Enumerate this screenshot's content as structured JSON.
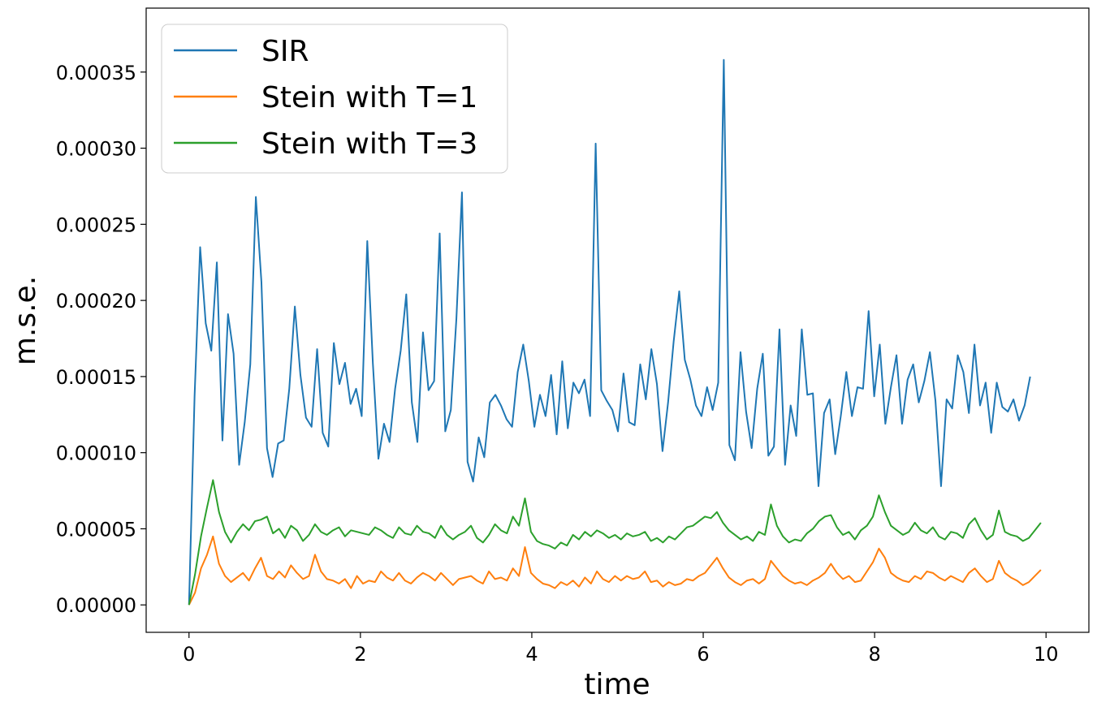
{
  "chart_data": {
    "type": "line",
    "title": "",
    "xlabel": "time",
    "ylabel": "m.s.e.",
    "xlim": [
      -0.5,
      10.5
    ],
    "ylim": [
      -1.8e-05,
      0.000392
    ],
    "x_ticks": [
      0,
      2,
      4,
      6,
      8,
      10
    ],
    "x_tick_labels": [
      "0",
      "2",
      "4",
      "6",
      "8",
      "10"
    ],
    "y_ticks": [
      0.0,
      5e-05,
      0.0001,
      0.00015,
      0.0002,
      0.00025,
      0.0003,
      0.00035
    ],
    "y_tick_labels": [
      "0.00000",
      "0.00005",
      "0.00010",
      "0.00015",
      "0.00020",
      "0.00025",
      "0.00030",
      "0.00035"
    ],
    "legend_position": "top-left",
    "x_start": 0,
    "x_step": 0.2,
    "series": [
      {
        "name": "SIR",
        "color": "#1f77b4",
        "values": [
          0.0,
          0.000137,
          0.000235,
          0.000185,
          0.000167,
          0.000225,
          0.000108,
          0.000191,
          0.000165,
          9.2e-05,
          0.00012,
          0.000158,
          0.000268,
          0.000212,
          0.000103,
          8.4e-05,
          0.000106,
          0.000108,
          0.000142,
          0.000196,
          0.000151,
          0.000123,
          0.000117,
          0.000168,
          0.000113,
          0.000104,
          0.000172,
          0.000145,
          0.000159,
          0.000132,
          0.000142,
          0.000124,
          0.000239,
          0.000159,
          9.6e-05,
          0.000119,
          0.000107,
          0.000142,
          0.000167,
          0.000204,
          0.000133,
          0.000107,
          0.000179,
          0.000141,
          0.000147,
          0.000244,
          0.000114,
          0.000128,
          0.000188,
          0.000271,
          9.4e-05,
          8.1e-05,
          0.00011,
          9.7e-05,
          0.000133,
          0.000138,
          0.000131,
          0.000122,
          0.000117,
          0.000153,
          0.000171,
          0.000147,
          0.000117,
          0.000138,
          0.000124,
          0.000151,
          0.000112,
          0.00016,
          0.000116,
          0.000146,
          0.000139,
          0.000148,
          0.000124,
          0.000303,
          0.000141,
          0.000134,
          0.000128,
          0.000114,
          0.000152,
          0.00012,
          0.000118,
          0.000158,
          0.000135,
          0.000168,
          0.000145,
          0.000101,
          0.000133,
          0.000173,
          0.000206,
          0.000161,
          0.000148,
          0.000131,
          0.000124,
          0.000143,
          0.000128,
          0.000146,
          0.000358,
          0.000105,
          9.5e-05,
          0.000166,
          0.000127,
          0.000103,
          0.000142,
          0.000165,
          9.8e-05,
          0.000104,
          0.000181,
          9.2e-05,
          0.000131,
          0.000111,
          0.000181,
          0.000138,
          0.000139,
          7.8e-05,
          0.000126,
          0.000135,
          9.9e-05,
          0.000124,
          0.000153,
          0.000124,
          0.000143,
          0.000142,
          0.000193,
          0.000137,
          0.000171,
          0.000119,
          0.000143,
          0.000164,
          0.000119,
          0.000148,
          0.000158,
          0.000133,
          0.000147,
          0.000166,
          0.000134,
          7.8e-05,
          0.000135,
          0.000129,
          0.000164,
          0.000153,
          0.000126,
          0.000171,
          0.000131,
          0.000146,
          0.000113,
          0.000146,
          0.00013,
          0.000127,
          0.000135,
          0.000121,
          0.000131,
          0.00015
        ],
        "step": 0.065
      },
      {
        "name": "Stein with T=1",
        "color": "#ff7f0e",
        "values": [
          0.0,
          8e-06,
          2.4e-05,
          3.3e-05,
          4.5e-05,
          2.7e-05,
          1.9e-05,
          1.5e-05,
          1.8e-05,
          2.1e-05,
          1.6e-05,
          2.4e-05,
          3.1e-05,
          1.9e-05,
          1.7e-05,
          2.2e-05,
          1.8e-05,
          2.6e-05,
          2.1e-05,
          1.7e-05,
          1.9e-05,
          3.3e-05,
          2.2e-05,
          1.7e-05,
          1.6e-05,
          1.4e-05,
          1.7e-05,
          1.1e-05,
          1.9e-05,
          1.4e-05,
          1.6e-05,
          1.5e-05,
          2.2e-05,
          1.8e-05,
          1.6e-05,
          2.1e-05,
          1.6e-05,
          1.4e-05,
          1.8e-05,
          2.1e-05,
          1.9e-05,
          1.6e-05,
          2.1e-05,
          1.7e-05,
          1.3e-05,
          1.7e-05,
          1.8e-05,
          1.9e-05,
          1.6e-05,
          1.4e-05,
          2.2e-05,
          1.7e-05,
          1.8e-05,
          1.6e-05,
          2.4e-05,
          1.9e-05,
          3.8e-05,
          2.1e-05,
          1.7e-05,
          1.4e-05,
          1.3e-05,
          1.1e-05,
          1.5e-05,
          1.3e-05,
          1.6e-05,
          1.2e-05,
          1.8e-05,
          1.4e-05,
          2.2e-05,
          1.7e-05,
          1.5e-05,
          1.9e-05,
          1.6e-05,
          1.9e-05,
          1.7e-05,
          1.8e-05,
          2.2e-05,
          1.5e-05,
          1.6e-05,
          1.2e-05,
          1.5e-05,
          1.3e-05,
          1.4e-05,
          1.7e-05,
          1.6e-05,
          1.9e-05,
          2.1e-05,
          2.6e-05,
          3.1e-05,
          2.4e-05,
          1.8e-05,
          1.5e-05,
          1.3e-05,
          1.6e-05,
          1.7e-05,
          1.4e-05,
          1.7e-05,
          2.9e-05,
          2.4e-05,
          1.9e-05,
          1.6e-05,
          1.4e-05,
          1.5e-05,
          1.3e-05,
          1.6e-05,
          1.8e-05,
          2.1e-05,
          2.7e-05,
          2.1e-05,
          1.7e-05,
          1.9e-05,
          1.5e-05,
          1.6e-05,
          2.2e-05,
          2.8e-05,
          3.7e-05,
          3.1e-05,
          2.1e-05,
          1.8e-05,
          1.6e-05,
          1.5e-05,
          1.9e-05,
          1.7e-05,
          2.2e-05,
          2.1e-05,
          1.8e-05,
          1.6e-05,
          1.9e-05,
          1.7e-05,
          1.5e-05,
          2.1e-05,
          2.4e-05,
          1.9e-05,
          1.5e-05,
          1.7e-05,
          2.9e-05,
          2.1e-05,
          1.8e-05,
          1.6e-05,
          1.3e-05,
          1.5e-05,
          1.9e-05,
          2.3e-05
        ],
        "step": 0.07
      },
      {
        "name": "Stein with T=3",
        "color": "#2ca02c",
        "values": [
          0.0,
          2e-05,
          4.5e-05,
          6.4e-05,
          8.2e-05,
          6.1e-05,
          4.8e-05,
          4.1e-05,
          4.8e-05,
          5.3e-05,
          4.9e-05,
          5.5e-05,
          5.6e-05,
          5.8e-05,
          4.7e-05,
          5e-05,
          4.4e-05,
          5.2e-05,
          4.9e-05,
          4.2e-05,
          4.6e-05,
          5.3e-05,
          4.8e-05,
          4.6e-05,
          4.9e-05,
          5.1e-05,
          4.5e-05,
          4.9e-05,
          4.8e-05,
          4.7e-05,
          4.6e-05,
          5.1e-05,
          4.9e-05,
          4.6e-05,
          4.4e-05,
          5.1e-05,
          4.7e-05,
          4.6e-05,
          5.2e-05,
          4.8e-05,
          4.7e-05,
          4.4e-05,
          5.2e-05,
          4.6e-05,
          4.3e-05,
          4.6e-05,
          4.8e-05,
          5.2e-05,
          4.4e-05,
          4.1e-05,
          4.6e-05,
          5.3e-05,
          4.9e-05,
          4.7e-05,
          5.8e-05,
          5.2e-05,
          7e-05,
          4.8e-05,
          4.2e-05,
          4e-05,
          3.9e-05,
          3.7e-05,
          4.1e-05,
          3.9e-05,
          4.6e-05,
          4.3e-05,
          4.8e-05,
          4.5e-05,
          4.9e-05,
          4.7e-05,
          4.4e-05,
          4.6e-05,
          4.3e-05,
          4.7e-05,
          4.5e-05,
          4.6e-05,
          4.8e-05,
          4.2e-05,
          4.4e-05,
          4.1e-05,
          4.5e-05,
          4.3e-05,
          4.7e-05,
          5.1e-05,
          5.2e-05,
          5.5e-05,
          5.8e-05,
          5.7e-05,
          6.1e-05,
          5.4e-05,
          4.9e-05,
          4.6e-05,
          4.3e-05,
          4.5e-05,
          4.2e-05,
          4.8e-05,
          4.6e-05,
          6.6e-05,
          5.2e-05,
          4.5e-05,
          4.1e-05,
          4.3e-05,
          4.2e-05,
          4.7e-05,
          5e-05,
          5.5e-05,
          5.8e-05,
          5.9e-05,
          5.1e-05,
          4.6e-05,
          4.8e-05,
          4.3e-05,
          4.9e-05,
          5.2e-05,
          5.8e-05,
          7.2e-05,
          6.1e-05,
          5.2e-05,
          4.9e-05,
          4.6e-05,
          4.8e-05,
          5.4e-05,
          4.9e-05,
          4.7e-05,
          5.1e-05,
          4.5e-05,
          4.3e-05,
          4.8e-05,
          4.7e-05,
          4.4e-05,
          5.3e-05,
          5.7e-05,
          4.9e-05,
          4.3e-05,
          4.6e-05,
          6.2e-05,
          4.8e-05,
          4.6e-05,
          4.5e-05,
          4.2e-05,
          4.4e-05,
          4.9e-05,
          5.4e-05
        ],
        "step": 0.07
      }
    ]
  }
}
